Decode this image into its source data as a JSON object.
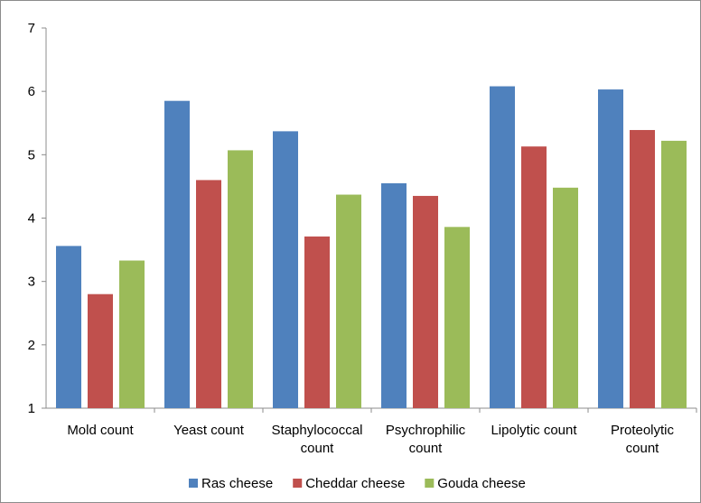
{
  "chart_data": {
    "type": "bar",
    "title": "",
    "xlabel": "",
    "ylabel": "",
    "ylim": [
      1,
      7
    ],
    "yticks": [
      "1",
      "2",
      "3",
      "4",
      "5",
      "6",
      "7"
    ],
    "grid": false,
    "legend_position": "bottom",
    "categories": [
      [
        "Mold  count"
      ],
      [
        "Yeast  count"
      ],
      [
        "Staphylococcal",
        "count"
      ],
      [
        "Psychrophilic",
        "count"
      ],
      [
        "Lipolytic  count"
      ],
      [
        "Proteolytic",
        "count"
      ]
    ],
    "series": [
      {
        "name": "Ras cheese",
        "color": "#4F81BD",
        "values": [
          3.56,
          5.85,
          5.37,
          4.55,
          6.08,
          6.03
        ]
      },
      {
        "name": "Cheddar cheese",
        "color": "#C0504D",
        "values": [
          2.8,
          4.6,
          3.71,
          4.35,
          5.13,
          5.39
        ]
      },
      {
        "name": "Gouda cheese",
        "color": "#9BBB59",
        "values": [
          3.33,
          5.07,
          4.37,
          3.86,
          4.48,
          5.22
        ]
      }
    ]
  }
}
